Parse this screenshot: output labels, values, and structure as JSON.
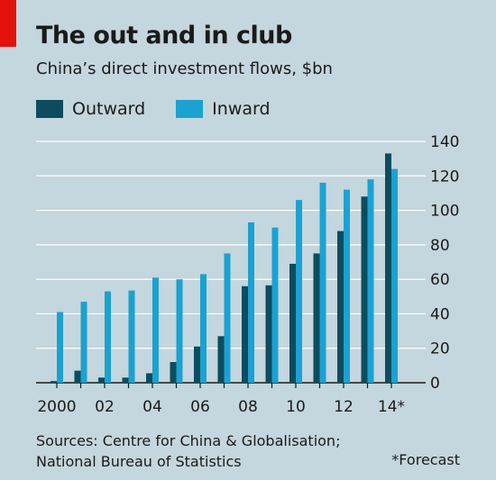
{
  "header": {
    "title": "The out and in club",
    "subtitle": "China’s direct investment flows, $bn"
  },
  "footer": {
    "sources_line1": "Sources: Centre for China & Globalisation;",
    "sources_line2": "National Bureau of Statistics",
    "note": "*Forecast"
  },
  "chart_data": {
    "type": "bar",
    "categories": [
      "2000",
      "2001",
      "2002",
      "2003",
      "2004",
      "2005",
      "2006",
      "2007",
      "2008",
      "2009",
      "2010",
      "2011",
      "2012",
      "2013",
      "2014"
    ],
    "tick_labels": [
      "2000",
      "",
      "02",
      "",
      "04",
      "",
      "06",
      "",
      "08",
      "",
      "10",
      "",
      "12",
      "",
      "14*"
    ],
    "series": [
      {
        "name": "Outward",
        "color": "#0d4c5f",
        "values": [
          1,
          7,
          3,
          3,
          5.5,
          12,
          21,
          27,
          56,
          56.5,
          69,
          75,
          88,
          108,
          133
        ]
      },
      {
        "name": "Inward",
        "color": "#1ba2d0",
        "values": [
          41,
          47,
          53,
          53.5,
          61,
          60,
          63,
          75,
          93,
          90,
          106,
          116,
          112,
          118,
          124
        ]
      }
    ],
    "ylim": [
      0,
      140
    ],
    "yticks": [
      0,
      20,
      40,
      60,
      80,
      100,
      120,
      140
    ],
    "y_axis_side": "right",
    "grid": true,
    "legend": "top-left"
  }
}
